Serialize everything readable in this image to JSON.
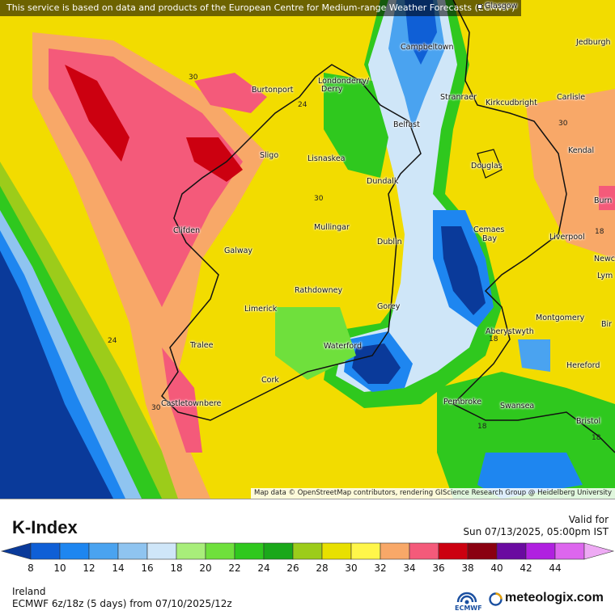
{
  "attribution_top": "This service is based on data and products of the European Centre for Medium-range Weather Forecasts (ECMWF)",
  "attribution_bottom": "Map data © OpenStreetMap contributors, rendering GIScience Research Group @ Heidelberg University",
  "legend": {
    "title": "K-Index",
    "valid_label": "Valid for",
    "valid_time": "Sun 07/13/2025, 05:00pm IST",
    "region": "Ireland",
    "model": "ECMWF 6z/18z (5 days) from 07/10/2025/12z",
    "brand": "meteologix.com",
    "ecmwf_label": "ECMWF",
    "ticks": [
      "8",
      "10",
      "12",
      "14",
      "16",
      "18",
      "20",
      "22",
      "24",
      "26",
      "28",
      "30",
      "32",
      "34",
      "36",
      "38",
      "40",
      "42",
      "44"
    ],
    "colors": [
      "#0a3a9a",
      "#0f5fd6",
      "#1e86f0",
      "#4aa3f0",
      "#8fc4f0",
      "#cfe6f8",
      "#a8ee7a",
      "#6fe03c",
      "#2fc81e",
      "#1aa81a",
      "#9ccc1a",
      "#e8e000",
      "#fff64a",
      "#f8a868",
      "#f45a7a",
      "#cc0010",
      "#8a0010",
      "#6a0aa0",
      "#b020e0",
      "#dd66ee",
      "#eeaaf4"
    ]
  },
  "cities": [
    {
      "name": "Glasgow"
    },
    {
      "name": "Jedburgh"
    },
    {
      "name": "Campbeltown"
    },
    {
      "name": "Londonderry/"
    },
    {
      "name": "Derry"
    },
    {
      "name": "Burtonport"
    },
    {
      "name": "Stranraer"
    },
    {
      "name": "Kirkcudbright"
    },
    {
      "name": "Carlisle"
    },
    {
      "name": "Belfast"
    },
    {
      "name": "Lisnaskea"
    },
    {
      "name": "Sligo"
    },
    {
      "name": "Kendal"
    },
    {
      "name": "Douglas"
    },
    {
      "name": "Dundalk"
    },
    {
      "name": "Burn"
    },
    {
      "name": "Mullingar"
    },
    {
      "name": "Clifden"
    },
    {
      "name": "Cemaes"
    },
    {
      "name": "Bay"
    },
    {
      "name": "Liverpool"
    },
    {
      "name": "Galway"
    },
    {
      "name": "Dublin"
    },
    {
      "name": "Newca"
    },
    {
      "name": "Lym"
    },
    {
      "name": "Rathdowney"
    },
    {
      "name": "Limerick"
    },
    {
      "name": "Gorey"
    },
    {
      "name": "Montgomery"
    },
    {
      "name": "Bir"
    },
    {
      "name": "Aberystwyth"
    },
    {
      "name": "Tralee"
    },
    {
      "name": "Waterford"
    },
    {
      "name": "Hereford"
    },
    {
      "name": "Cork"
    },
    {
      "name": "Pembroke"
    },
    {
      "name": "Castletownbere"
    },
    {
      "name": "Swansea"
    },
    {
      "name": "Bristol"
    }
  ],
  "contour_labels": [
    "30",
    "24",
    "30",
    "24",
    "18",
    "30",
    "30",
    "18",
    "18",
    "18"
  ]
}
